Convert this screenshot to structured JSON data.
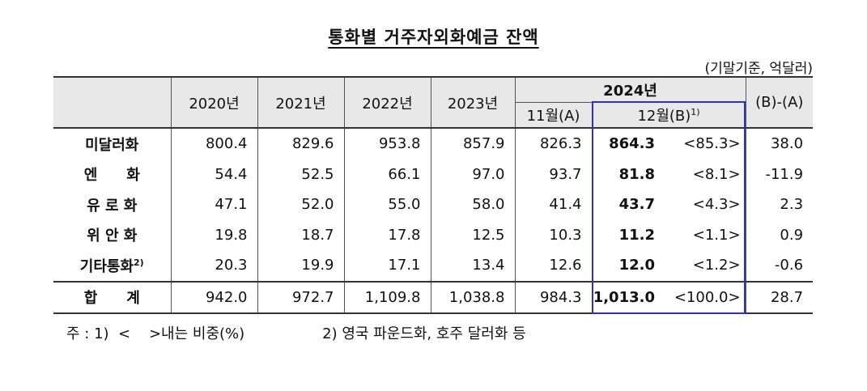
{
  "title": "통화별 거주자외화예금 잔액",
  "unit": "(기말기준, 억달러)",
  "columns": {
    "y2020": "2020년",
    "y2021": "2021년",
    "y2022": "2022년",
    "y2023": "2023년",
    "y2024": "2024년",
    "nov": "11월(A)",
    "dec": "12월(B)",
    "dec_note": "1)",
    "diff": "(B)-(A)"
  },
  "rows": [
    {
      "name": "미달러화",
      "note": "",
      "v2020": "800.4",
      "v2021": "829.6",
      "v2022": "953.8",
      "v2023": "857.9",
      "nov": "826.3",
      "dec": "864.3",
      "share": "<85.3>",
      "diff": "38.0"
    },
    {
      "name": "엔　　화",
      "note": "",
      "v2020": "54.4",
      "v2021": "52.5",
      "v2022": "66.1",
      "v2023": "97.0",
      "nov": "93.7",
      "dec": "81.8",
      "share": "<8.1>",
      "diff": "-11.9"
    },
    {
      "name": "유 로 화",
      "note": "",
      "v2020": "47.1",
      "v2021": "52.0",
      "v2022": "55.0",
      "v2023": "58.0",
      "nov": "41.4",
      "dec": "43.7",
      "share": "<4.3>",
      "diff": "2.3"
    },
    {
      "name": "위 안 화",
      "note": "",
      "v2020": "19.8",
      "v2021": "18.7",
      "v2022": "17.8",
      "v2023": "12.5",
      "nov": "10.3",
      "dec": "11.2",
      "share": "<1.1>",
      "diff": "0.9"
    },
    {
      "name": "기타통화",
      "note": "2)",
      "v2020": "20.3",
      "v2021": "19.9",
      "v2022": "17.1",
      "v2023": "13.4",
      "nov": "12.6",
      "dec": "12.0",
      "share": "<1.2>",
      "diff": "-0.6"
    }
  ],
  "total": {
    "name": "합　　계",
    "v2020": "942.0",
    "v2021": "972.7",
    "v2022": "1,109.8",
    "v2023": "1,038.8",
    "nov": "984.3",
    "dec": "1,013.0",
    "share": "<100.0>",
    "diff": "28.7"
  },
  "footnote": {
    "note1": "주 : 1)  <    >내는 비중(%)",
    "dot": ".",
    "note2": "2) 영국 파운드화, 호주 달러화 등"
  },
  "colors": {
    "highlight_border": "#3030c8",
    "header_bg": "#e8e8e8"
  }
}
